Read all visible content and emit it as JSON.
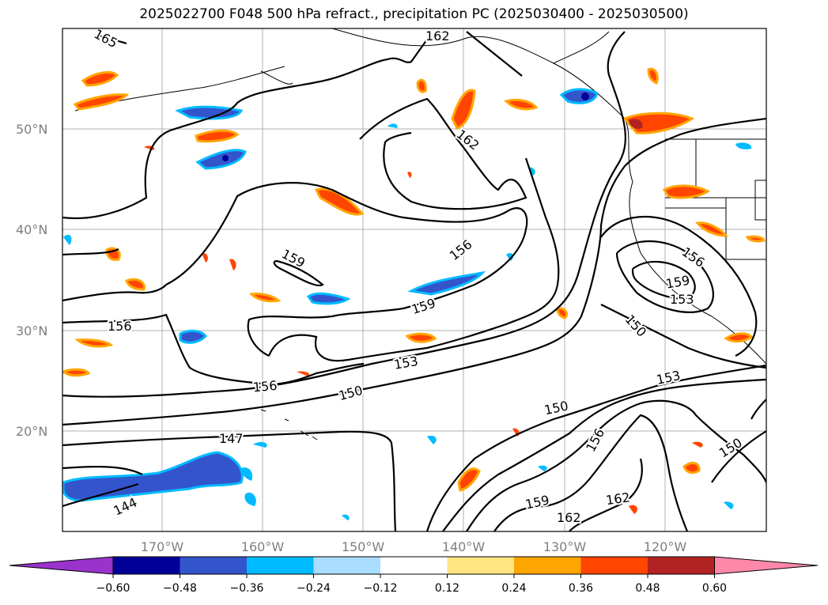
{
  "title": "2025022700 F048 500 hPa refract., precipitation PC (2025030400 - 2025030500)",
  "lat_labels": [
    "50°N",
    "40°N",
    "30°N",
    "20°N"
  ],
  "lon_labels": [
    "170°W",
    "160°W",
    "150°W",
    "140°W",
    "130°W",
    "120°W"
  ],
  "contour_labels": [
    "165",
    "162",
    "162",
    "156",
    "159",
    "159",
    "156",
    "159",
    "153",
    "150",
    "156",
    "156",
    "153",
    "150",
    "153",
    "150",
    "147",
    "156",
    "144",
    "159",
    "162",
    "162",
    "150"
  ],
  "colorbar": {
    "ticks": [
      "−0.60",
      "−0.48",
      "−0.36",
      "−0.24",
      "−0.12",
      "0.12",
      "0.24",
      "0.36",
      "0.48",
      "0.60"
    ],
    "colors": [
      "#9933cc",
      "#000099",
      "#3355cc",
      "#00bbff",
      "#aaddff",
      "#ffffff",
      "#ffe680",
      "#ffa500",
      "#ff4500",
      "#b22222",
      "#ff88aa"
    ]
  }
}
